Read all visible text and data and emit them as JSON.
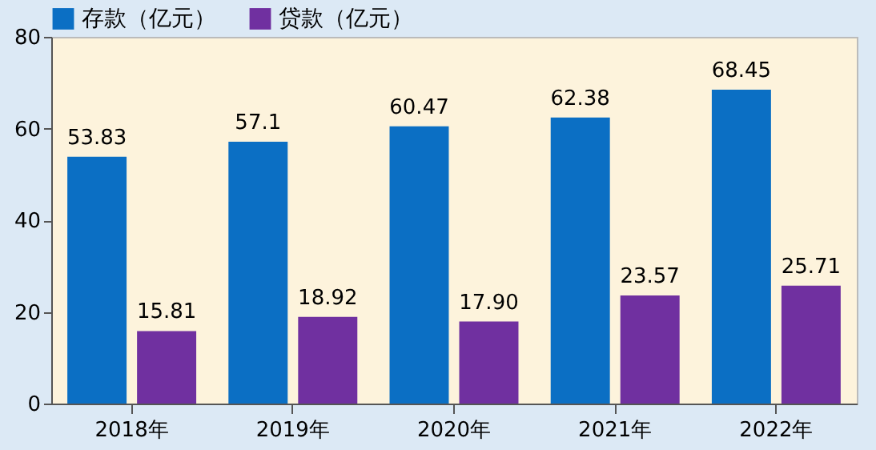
{
  "chart_data": {
    "type": "bar",
    "categories": [
      "2018年",
      "2019年",
      "2020年",
      "2021年",
      "2022年"
    ],
    "series": [
      {
        "name": "存款（亿元）",
        "color": "#0b6fc4",
        "values": [
          53.83,
          57.1,
          60.47,
          62.38,
          68.45
        ],
        "value_labels": [
          "53.83",
          "57.1",
          "60.47",
          "62.38",
          "68.45"
        ]
      },
      {
        "name": "贷款（亿元）",
        "color": "#7030a0",
        "values": [
          15.81,
          18.92,
          17.9,
          23.57,
          25.71
        ],
        "value_labels": [
          "15.81",
          "18.92",
          "17.90",
          "23.57",
          "25.71"
        ]
      }
    ],
    "ylim": [
      0,
      80
    ],
    "yticks": [
      0,
      20,
      40,
      60,
      80
    ],
    "grid": false,
    "legend": "top"
  }
}
